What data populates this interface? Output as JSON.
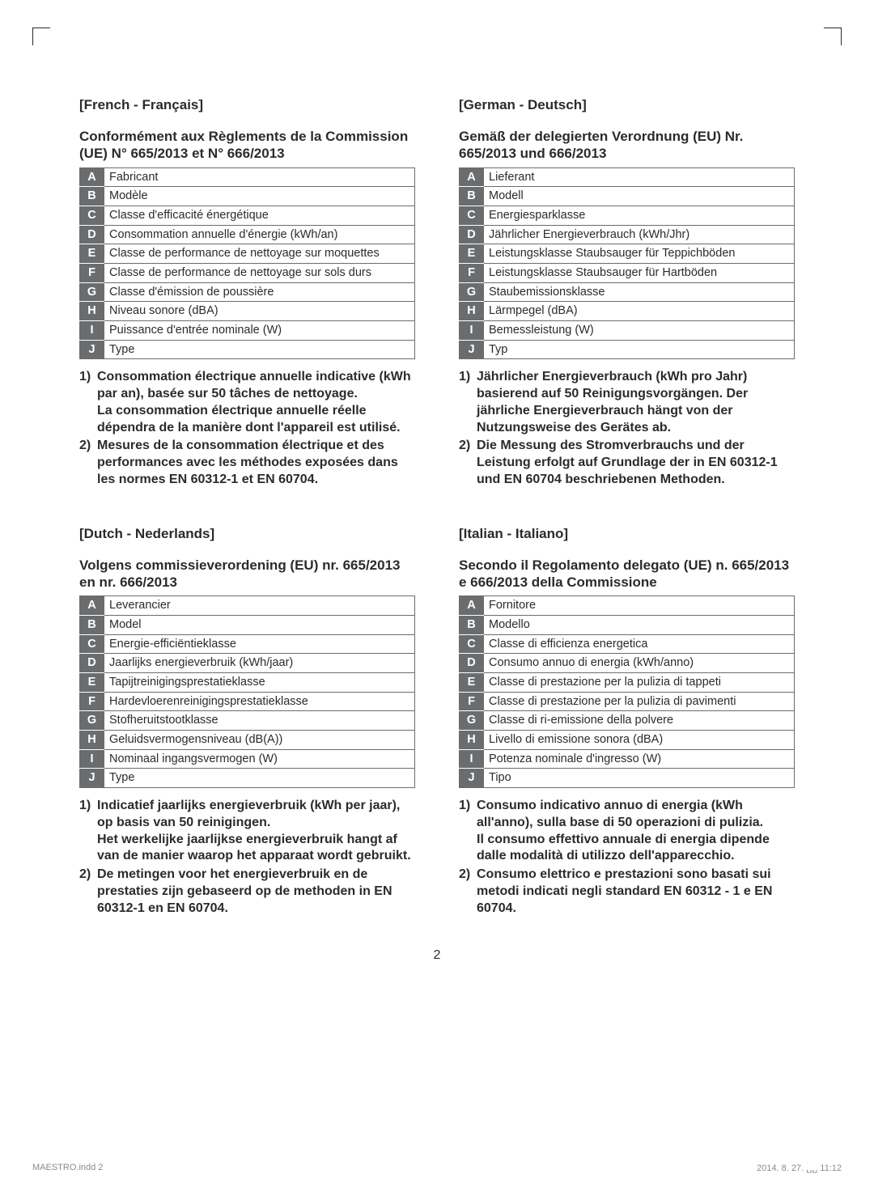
{
  "page_number": "2",
  "footer_left": "MAESTRO.indd   2",
  "footer_right": "2014. 8. 27.   ␣␣ 11:12",
  "sections": {
    "french": {
      "heading": "[French - Français]",
      "subheading": "Conformément aux Règlements de la Commission (UE) N° 665/2013 et N° 666/2013",
      "rows": [
        {
          "k": "A",
          "v": "Fabricant"
        },
        {
          "k": "B",
          "v": "Modèle"
        },
        {
          "k": "C",
          "v": "Classe d'efficacité énergétique"
        },
        {
          "k": "D",
          "v": "Consommation annuelle d'énergie (kWh/an)"
        },
        {
          "k": "E",
          "v": "Classe de performance de nettoyage sur moquettes"
        },
        {
          "k": "F",
          "v": "Classe de performance de nettoyage sur sols durs"
        },
        {
          "k": "G",
          "v": "Classe d'émission de poussière"
        },
        {
          "k": "H",
          "v": "Niveau sonore (dBA)"
        },
        {
          "k": "I",
          "v": "Puissance d'entrée nominale (W)"
        },
        {
          "k": "J",
          "v": "Type"
        }
      ],
      "notes": [
        {
          "n": "1)",
          "paras": [
            "Consommation électrique annuelle indicative (kWh par an), basée sur 50 tâches de nettoyage.",
            "La consommation électrique annuelle réelle dépendra de la manière dont l'appareil est utilisé."
          ]
        },
        {
          "n": "2)",
          "paras": [
            "Mesures de la consommation électrique et des performances avec les méthodes exposées dans les normes EN 60312-1 et EN 60704."
          ]
        }
      ]
    },
    "german": {
      "heading": "[German - Deutsch]",
      "subheading": "Gemäß der delegierten Verordnung (EU) Nr. 665/2013 und 666/2013",
      "rows": [
        {
          "k": "A",
          "v": "Lieferant"
        },
        {
          "k": "B",
          "v": "Modell"
        },
        {
          "k": "C",
          "v": "Energiesparklasse"
        },
        {
          "k": "D",
          "v": "Jährlicher Energieverbrauch (kWh/Jhr)"
        },
        {
          "k": "E",
          "v": "Leistungsklasse Staubsauger für Teppichböden"
        },
        {
          "k": "F",
          "v": "Leistungsklasse Staubsauger für Hartböden"
        },
        {
          "k": "G",
          "v": "Staubemissionsklasse"
        },
        {
          "k": "H",
          "v": "Lärmpegel (dBA)"
        },
        {
          "k": "I",
          "v": "Bemessleistung (W)"
        },
        {
          "k": "J",
          "v": "Typ"
        }
      ],
      "notes": [
        {
          "n": "1)",
          "paras": [
            "Jährlicher Energieverbrauch (kWh pro Jahr) basierend auf 50 Reinigungsvorgängen. Der jährliche Energieverbrauch hängt von der Nutzungsweise des Gerätes ab."
          ]
        },
        {
          "n": "2)",
          "paras": [
            "Die Messung des Stromverbrauchs und der Leistung erfolgt auf Grundlage der in EN 60312-1 und EN 60704 beschriebenen Methoden."
          ]
        }
      ]
    },
    "dutch": {
      "heading": "[Dutch - Nederlands]",
      "subheading": "Volgens commissieverordening (EU) nr. 665/2013 en nr. 666/2013",
      "rows": [
        {
          "k": "A",
          "v": "Leverancier"
        },
        {
          "k": "B",
          "v": "Model"
        },
        {
          "k": "C",
          "v": "Energie-efficiëntieklasse"
        },
        {
          "k": "D",
          "v": "Jaarlijks energieverbruik (kWh/jaar)"
        },
        {
          "k": "E",
          "v": "Tapijtreinigingsprestatieklasse"
        },
        {
          "k": "F",
          "v": "Hardevloerenreinigingsprestatieklasse"
        },
        {
          "k": "G",
          "v": "Stofheruitstootklasse"
        },
        {
          "k": "H",
          "v": "Geluidsvermogensniveau (dB(A))"
        },
        {
          "k": "I",
          "v": "Nominaal ingangsvermogen (W)"
        },
        {
          "k": "J",
          "v": "Type"
        }
      ],
      "notes": [
        {
          "n": "1)",
          "paras": [
            "Indicatief jaarlijks energieverbruik (kWh per jaar), op basis van 50 reinigingen.",
            "Het werkelijke jaarlijkse energieverbruik hangt af van de manier waarop het apparaat wordt gebruikt."
          ]
        },
        {
          "n": "2)",
          "paras": [
            "De metingen voor het energieverbruik en de prestaties zijn gebaseerd op de methoden in EN 60312-1 en EN 60704."
          ]
        }
      ]
    },
    "italian": {
      "heading": "[Italian - Italiano]",
      "subheading": "Secondo il Regolamento delegato (UE) n. 665/2013 e 666/2013 della Commissione",
      "rows": [
        {
          "k": "A",
          "v": "Fornitore"
        },
        {
          "k": "B",
          "v": "Modello"
        },
        {
          "k": "C",
          "v": "Classe di efficienza energetica"
        },
        {
          "k": "D",
          "v": "Consumo annuo di energia (kWh/anno)"
        },
        {
          "k": "E",
          "v": "Classe di prestazione per la pulizia di tappeti"
        },
        {
          "k": "F",
          "v": "Classe di prestazione per la pulizia di pavimenti"
        },
        {
          "k": "G",
          "v": "Classe di ri-emissione della polvere"
        },
        {
          "k": "H",
          "v": "Livello di emissione sonora (dBA)"
        },
        {
          "k": "I",
          "v": "Potenza nominale d'ingresso (W)"
        },
        {
          "k": "J",
          "v": "Tipo"
        }
      ],
      "notes": [
        {
          "n": "1)",
          "paras": [
            "Consumo indicativo annuo di energia (kWh all'anno), sulla base di 50 operazioni di pulizia.",
            "Il consumo effettivo annuale di energia dipende dalle modalità di utilizzo dell'apparecchio."
          ]
        },
        {
          "n": "2)",
          "paras": [
            "Consumo elettrico e prestazioni sono basati sui metodi indicati negli standard EN 60312 - 1 e EN 60704."
          ]
        }
      ]
    }
  }
}
